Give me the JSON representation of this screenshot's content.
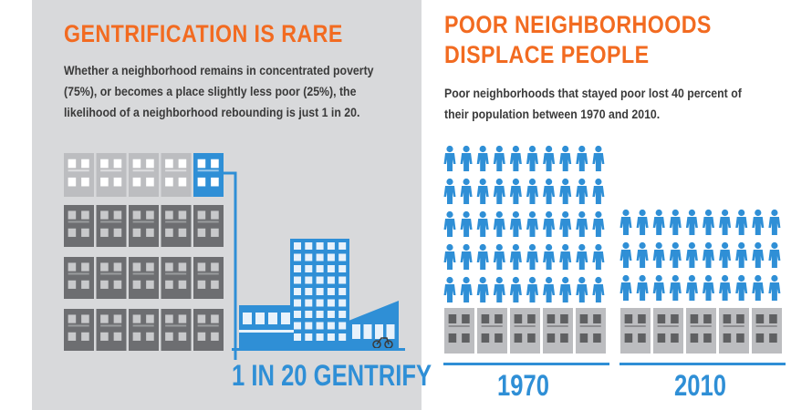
{
  "left": {
    "title": "GENTRIFICATION IS RARE",
    "body_lines": [
      "Whether a neighborhood remains in concentrated poverty",
      "(75%), or becomes a place slightly less poor (25%), the",
      "likelihood of a neighborhood rebounding is just 1 in 20."
    ],
    "callout": "1 IN 20 GENTRIFY"
  },
  "right": {
    "title_lines": [
      "POOR NEIGHBORHOODS",
      "DISPLACE PEOPLE"
    ],
    "body_lines": [
      "Poor neighborhoods that stayed poor lost 40 percent of",
      "their population between 1970 and 2010."
    ],
    "groups": [
      {
        "year": "1970",
        "rows": 5,
        "cols": 10
      },
      {
        "year": "2010",
        "rows": 3,
        "cols": 10
      }
    ]
  },
  "colors": {
    "orange": "#f26b21",
    "blue": "#2f8fd6",
    "panel_gray": "#d8d9db",
    "building_dark": "#6d6e71",
    "building_light": "#bcbdc0",
    "text_dark": "#3a3a3a"
  }
}
